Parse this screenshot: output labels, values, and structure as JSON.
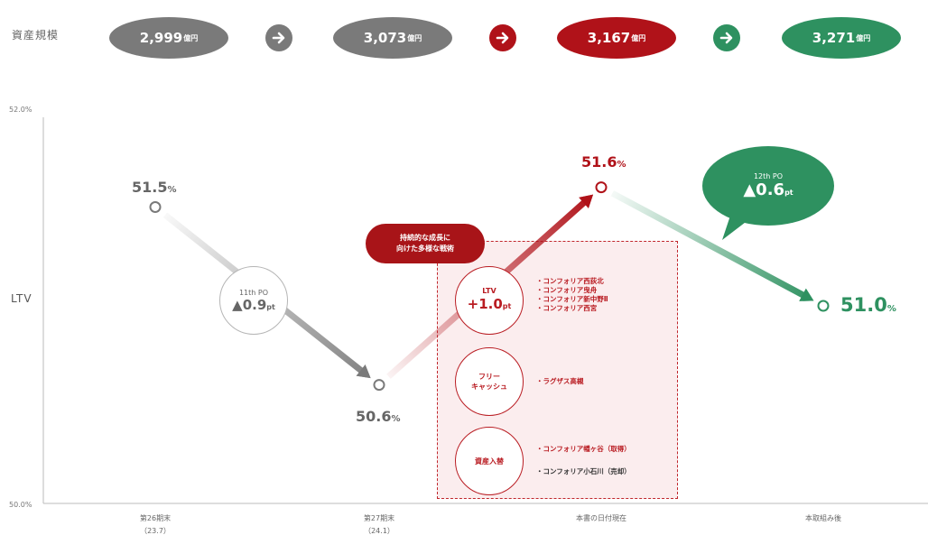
{
  "asset_scale": {
    "label": "資産規模",
    "unit": "億円",
    "steps": [
      {
        "value": "2,999",
        "color": "#7a7a7a"
      },
      {
        "value": "3,073",
        "color": "#7a7a7a"
      },
      {
        "value": "3,167",
        "color": "#b01219"
      },
      {
        "value": "3,271",
        "color": "#2e9160"
      }
    ],
    "arrow_colors": [
      "#7a7a7a",
      "#b01219",
      "#2e9160"
    ]
  },
  "chart_data": {
    "type": "line",
    "ylabel": "LTV",
    "ylim": [
      50.0,
      52.0
    ],
    "y_tick_labels": [
      "52.0%",
      "50.0%"
    ],
    "categories": [
      "第26期末\n（23.7）",
      "第27期末\n（24.1）",
      "本書の日付現在",
      "本取組み後"
    ],
    "values": [
      51.5,
      50.6,
      51.6,
      51.0
    ],
    "value_labels": [
      "51.5",
      "50.6",
      "51.6",
      "51.0"
    ],
    "value_unit": "%",
    "point_colors": [
      "#7a7a7a",
      "#7a7a7a",
      "#b01219",
      "#2e9160"
    ]
  },
  "po11": {
    "title": "11",
    "title_suffix": "th PO",
    "delta": "▲0.9",
    "unit": "pt"
  },
  "po12": {
    "title": "12",
    "title_suffix": "th PO",
    "delta": "▲0.6",
    "unit": "pt"
  },
  "strategy": {
    "callout_line1": "持続的な成長に",
    "callout_line2": "向けた多様な戦術",
    "groups": [
      {
        "label1": "LTV",
        "label2": "+1.0",
        "unit": "pt",
        "items": [
          "・コンフォリア西荻北",
          "・コンフォリア曳舟",
          "・コンフォリア新中野Ⅱ",
          "・コンフォリア西宮"
        ]
      },
      {
        "label1": "フリー",
        "label2": "キャッシュ",
        "items": [
          "・ラグザス高槻"
        ]
      },
      {
        "label1": "資産入替",
        "items": [
          "・コンフォリア幡ヶ谷（取得）",
          "・コンフォリア小石川（売却）"
        ]
      }
    ]
  }
}
